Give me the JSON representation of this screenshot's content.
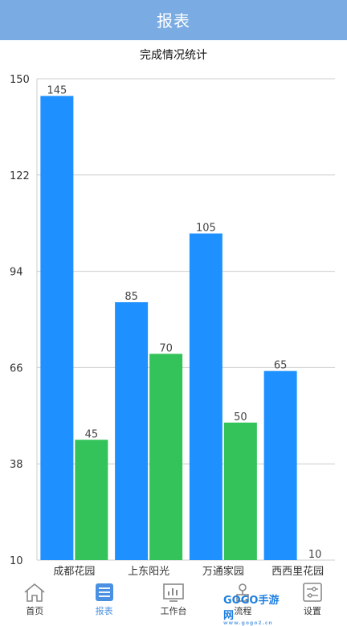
{
  "header": {
    "title": "报表"
  },
  "chart_data": {
    "type": "bar",
    "title": "完成情况统计",
    "categories": [
      "成都花园",
      "上东阳光",
      "万通家园",
      "西西里花园"
    ],
    "series": [
      {
        "values": [
          145,
          85,
          105,
          65
        ],
        "color": "#1e90ff"
      },
      {
        "values": [
          45,
          70,
          50,
          10
        ],
        "color": "#33c35a"
      }
    ],
    "ylim": [
      10,
      150
    ],
    "yticks": [
      10,
      38,
      66,
      94,
      122,
      150
    ],
    "grid": true,
    "data_labels": true
  },
  "tabbar": {
    "tabs": [
      {
        "label": "首页",
        "icon": "home-icon"
      },
      {
        "label": "报表",
        "icon": "report-icon",
        "active": true
      },
      {
        "label": "工作台",
        "icon": "workbench-icon"
      },
      {
        "label": "流程",
        "icon": "flow-icon"
      },
      {
        "label": "设置",
        "icon": "settings-icon"
      }
    ]
  },
  "watermark": {
    "text": "GOGO手游网",
    "sub": "www.gogo2.cn"
  }
}
